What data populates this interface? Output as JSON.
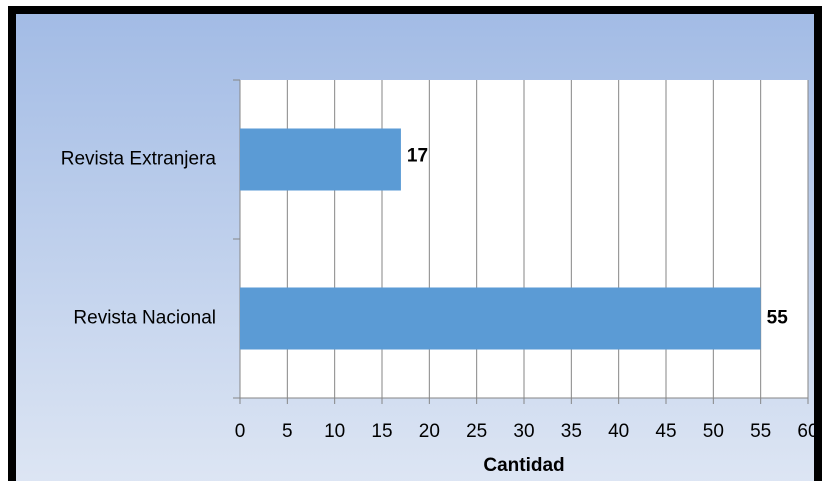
{
  "chart_data": {
    "type": "bar",
    "orientation": "horizontal",
    "categories": [
      "Revista Extranjera",
      "Revista Nacional"
    ],
    "values": [
      17,
      55
    ],
    "color": "#5b9bd5",
    "xlabel": "Cantidad",
    "xlim": [
      0,
      60
    ],
    "xticks": [
      0,
      5,
      10,
      15,
      20,
      25,
      30,
      35,
      40,
      45,
      50,
      55,
      60
    ],
    "grid": true
  }
}
